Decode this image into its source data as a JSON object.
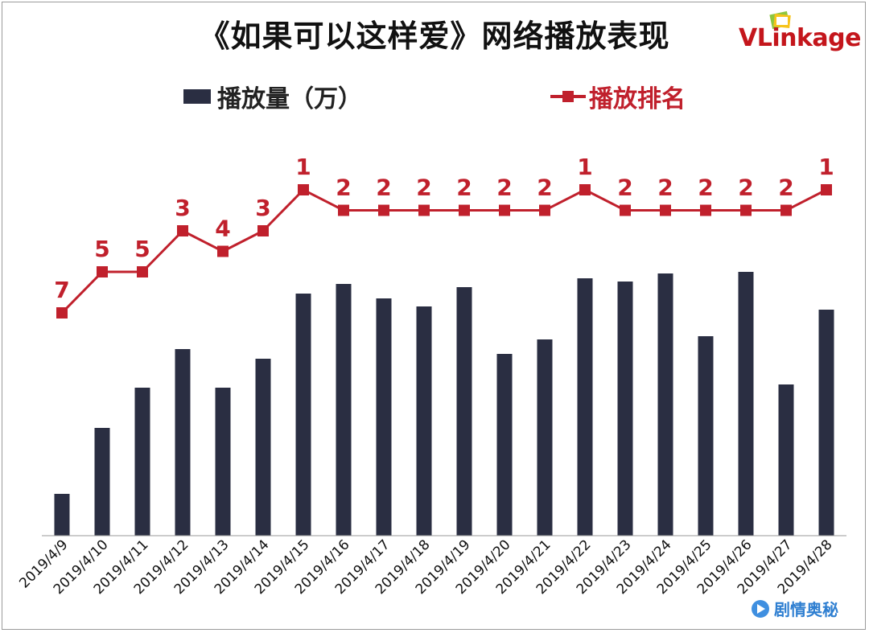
{
  "title": "《如果可以这样爱》网络播放表现",
  "logo": {
    "brand_first": "VL",
    "brand_rest": "inkage"
  },
  "watermark": "剧情奥秘",
  "colors": {
    "bar": "#2a2e42",
    "line": "#c0202c",
    "axis": "#9a9a9a",
    "text": "#111111"
  },
  "chart_data": {
    "type": "bar+line",
    "title": "《如果可以这样爱》网络播放表现",
    "categories": [
      "2019/4/9",
      "2019/4/10",
      "2019/4/11",
      "2019/4/12",
      "2019/4/13",
      "2019/4/14",
      "2019/4/15",
      "2019/4/16",
      "2019/4/17",
      "2019/4/18",
      "2019/4/19",
      "2019/4/20",
      "2019/4/21",
      "2019/4/22",
      "2019/4/23",
      "2019/4/24",
      "2019/4/25",
      "2019/4/26",
      "2019/4/27",
      "2019/4/28"
    ],
    "series": [
      {
        "name": "播放量（万）",
        "type": "bar",
        "values": [
          52,
          134,
          184,
          232,
          184,
          220,
          301,
          313,
          295,
          285,
          309,
          226,
          244,
          320,
          316,
          326,
          248,
          328,
          188,
          281
        ]
      },
      {
        "name": "播放排名",
        "type": "line",
        "values": [
          7,
          5,
          5,
          3,
          4,
          3,
          1,
          2,
          2,
          2,
          2,
          2,
          2,
          1,
          2,
          2,
          2,
          2,
          2,
          1
        ]
      }
    ],
    "legend": "top",
    "grid": false
  }
}
